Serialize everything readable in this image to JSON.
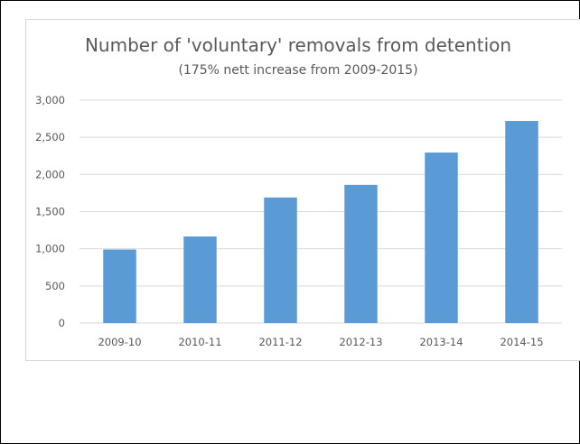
{
  "chart_data": {
    "type": "bar",
    "title": "Number of 'voluntary' removals from detention",
    "subtitle": "(175% nett increase from 2009-2015)",
    "categories": [
      "2009-10",
      "2010-11",
      "2011-12",
      "2012-13",
      "2013-14",
      "2014-15"
    ],
    "values": [
      990,
      1165,
      1690,
      1860,
      2295,
      2720
    ],
    "ylim": [
      0,
      3000
    ],
    "y_ticks": [
      "0",
      "500",
      "1,000",
      "1,500",
      "2,000",
      "2,500",
      "3,000"
    ],
    "grid": true,
    "bar_color": "#5b9bd5",
    "gridline_color": "#d9d9d9"
  }
}
